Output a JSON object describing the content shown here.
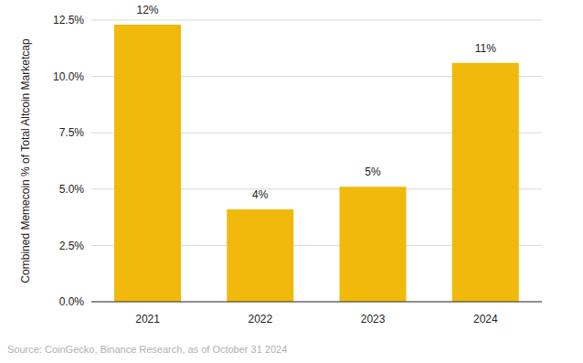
{
  "chart_data": {
    "type": "bar",
    "y_label": "Combined Memecoin % of Total Altcoin Marketcap",
    "categories": [
      "2021",
      "2022",
      "2023",
      "2024"
    ],
    "values": [
      12.3,
      4.1,
      5.1,
      10.6
    ],
    "value_labels": [
      "12%",
      "4%",
      "5%",
      "11%"
    ],
    "data_labels": true,
    "color": "#f0b90b",
    "ylim": [
      0,
      12.5
    ],
    "yticks": [
      {
        "value": 0,
        "label": "0.0%"
      },
      {
        "value": 2.5,
        "label": "2.5%"
      },
      {
        "value": 5,
        "label": "5.0%"
      },
      {
        "value": 7.5,
        "label": "7.5%"
      },
      {
        "value": 10,
        "label": "10.0%"
      },
      {
        "value": 12.5,
        "label": "12.5%"
      }
    ],
    "grid": true,
    "annotations": [
      "Source: CoinGecko, Binance Research, as of October 31 2024"
    ]
  }
}
